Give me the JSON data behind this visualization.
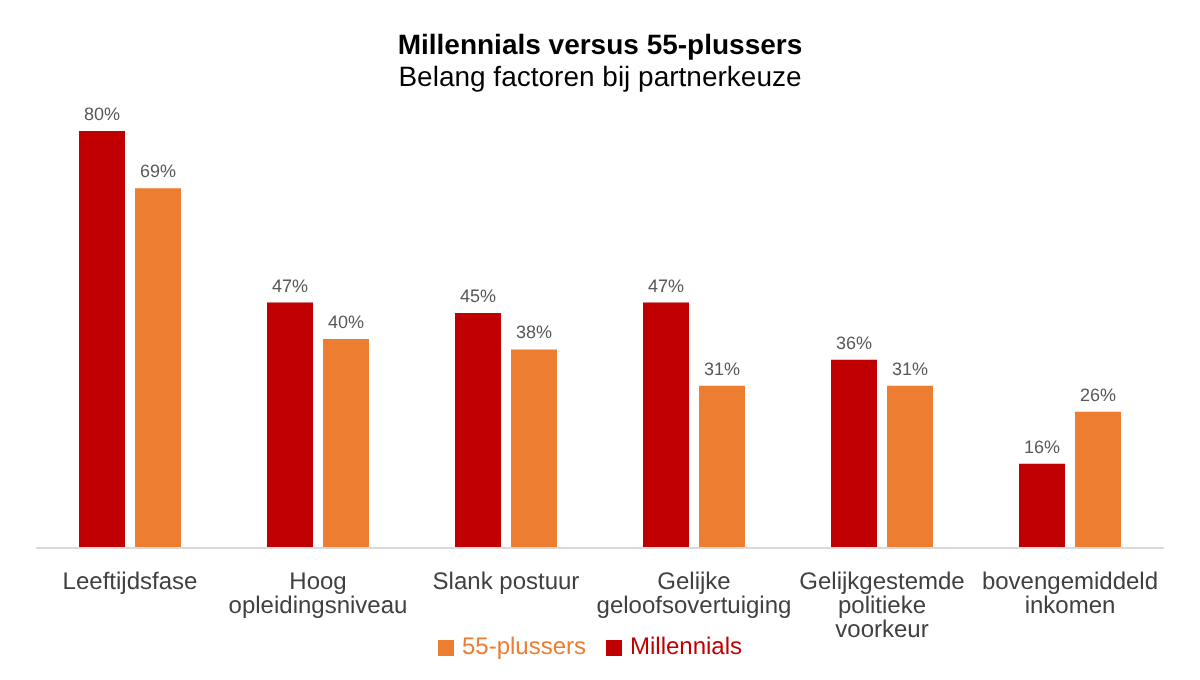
{
  "chart_data": {
    "type": "bar",
    "title": "Millennials versus 55-plussers",
    "subtitle": "Belang factoren bij partnerkeuze",
    "categories": [
      "Leeftijdsfase",
      "Hoog opleidingsniveau",
      "Slank postuur",
      "Gelijke geloofsovertuiging",
      "Gelijkgestemde politieke voorkeur",
      "bovengemiddeld inkomen"
    ],
    "series": [
      {
        "name": "Millennials",
        "color": "#c00000",
        "values": [
          80,
          47,
          45,
          47,
          36,
          16
        ],
        "value_labels": [
          "80%",
          "47%",
          "45%",
          "47%",
          "36%",
          "16%"
        ]
      },
      {
        "name": "55-plussers",
        "color": "#ed7d31",
        "values": [
          69,
          40,
          38,
          31,
          31,
          26
        ],
        "value_labels": [
          "69%",
          "40%",
          "38%",
          "31%",
          "31%",
          "26%"
        ]
      }
    ],
    "legend": "bottom",
    "grid": false
  }
}
